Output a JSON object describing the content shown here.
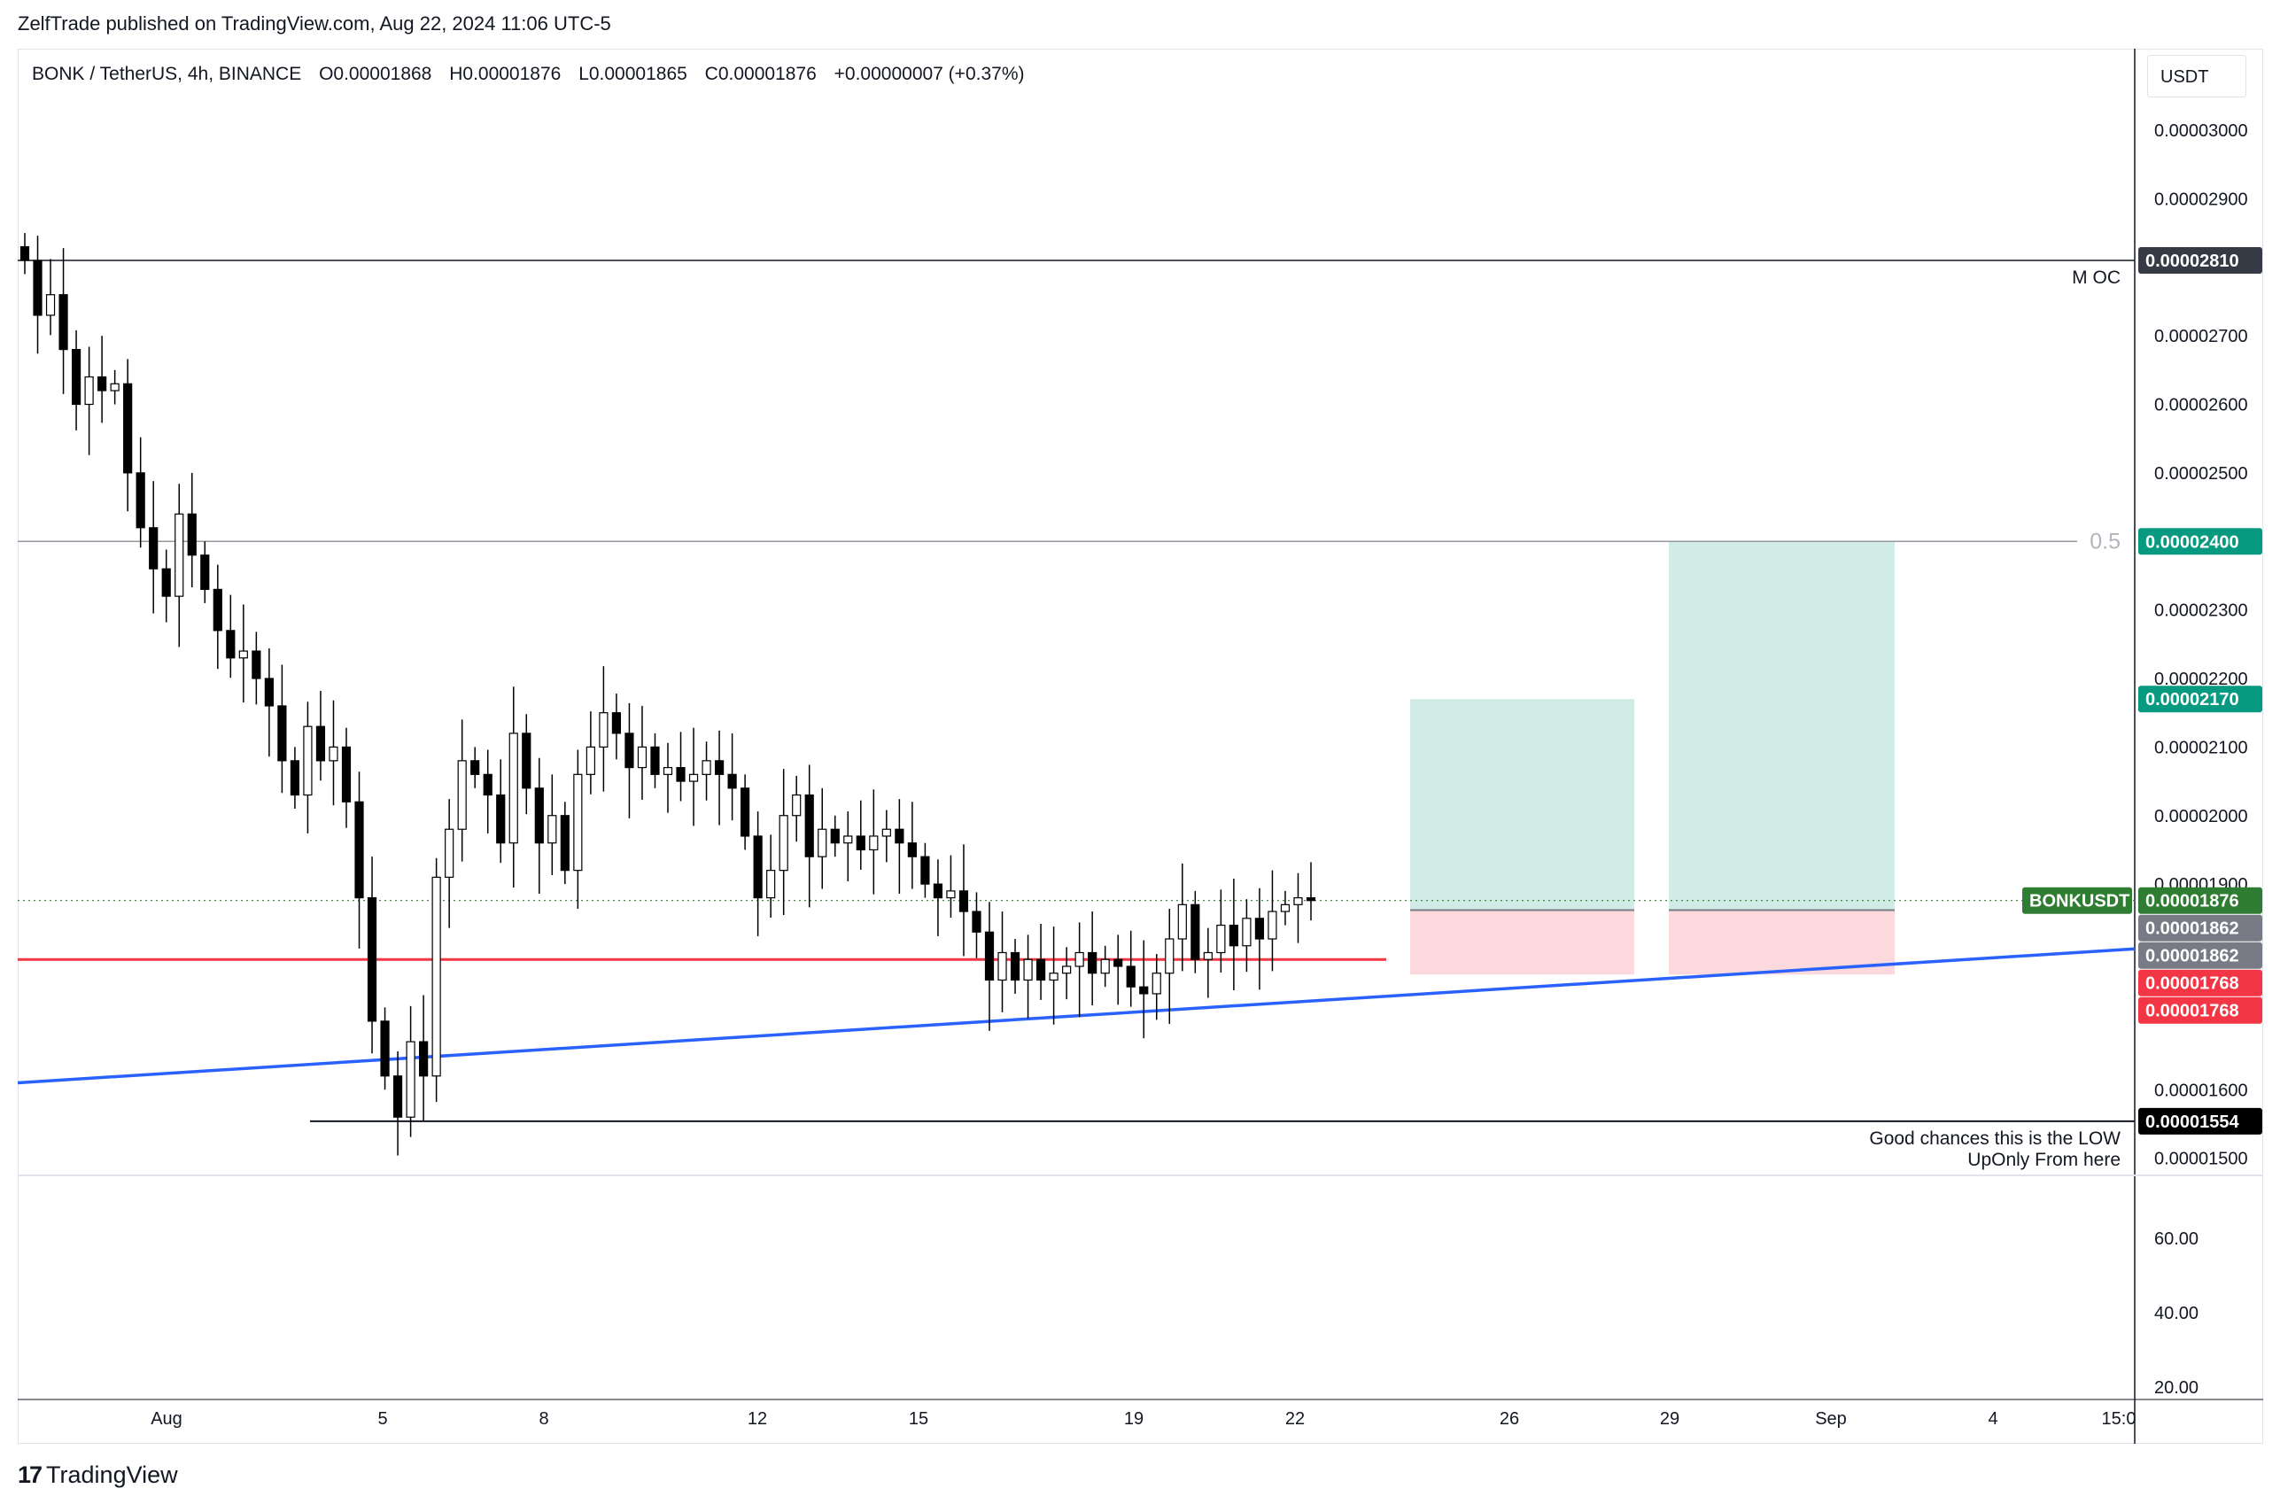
{
  "header": {
    "publisher": "ZelfTrade published on TradingView.com, Aug 22, 2024 11:06 UTC-5"
  },
  "legend": {
    "symbol": "BONK / TetherUS, 4h, BINANCE",
    "open": "O0.00001868",
    "high": "H0.00001876",
    "low": "L0.00001865",
    "close": "C0.00001876",
    "change": "+0.00000007 (+0.37%)"
  },
  "currency_button": "USDT",
  "brand": {
    "logo": "17",
    "name": "TradingView"
  },
  "colors": {
    "up": "#ffffff",
    "down": "#000000",
    "candle_border": "#000000",
    "support_line": "#f23645",
    "trend_line": "#2962ff",
    "tp_zone": "#d1ece6",
    "sl_zone": "#fcd9dc",
    "tp_label": "#089981",
    "sl_label": "#f23645",
    "entry_label": "#787b86",
    "symbol_label": "#2e7d32"
  },
  "chart_data": {
    "type": "candlestick",
    "symbol": "BONKUSDT",
    "interval": "4h",
    "ylim": [
      1.48e-05,
      3.13e-05
    ],
    "y_ticks": [
      "0.00003000",
      "0.00002900",
      "0.00002700",
      "0.00002600",
      "0.00002500",
      "0.00002300",
      "0.00002200",
      "0.00002100",
      "0.00002000",
      "0.00001900",
      "0.00001600",
      "0.00001500"
    ],
    "x_ticks": [
      "Aug",
      "5",
      "8",
      "12",
      "15",
      "19",
      "22",
      "26",
      "29",
      "Sep",
      "4",
      "15:0"
    ],
    "close_series": [
      2.81,
      2.73,
      2.76,
      2.68,
      2.6,
      2.64,
      2.62,
      2.63,
      2.5,
      2.42,
      2.36,
      2.32,
      2.44,
      2.38,
      2.33,
      2.27,
      2.23,
      2.24,
      2.2,
      2.16,
      2.08,
      2.03,
      2.13,
      2.08,
      2.1,
      2.02,
      1.88,
      1.7,
      1.62,
      1.56,
      1.67,
      1.62,
      1.91,
      1.98,
      2.08,
      2.06,
      2.03,
      1.96,
      2.12,
      2.04,
      1.96,
      2.0,
      1.92,
      2.06,
      2.1,
      2.15,
      2.12,
      2.07,
      2.1,
      2.06,
      2.07,
      2.05,
      2.06,
      2.08,
      2.06,
      2.04,
      1.97,
      1.88,
      1.92,
      2.0,
      2.03,
      1.94,
      1.98,
      1.96,
      1.97,
      1.95,
      1.97,
      1.98,
      1.96,
      1.94,
      1.9,
      1.88,
      1.89,
      1.86,
      1.83,
      1.76,
      1.8,
      1.76,
      1.79,
      1.76,
      1.77,
      1.78,
      1.8,
      1.77,
      1.79,
      1.78,
      1.75,
      1.74,
      1.77,
      1.82,
      1.87,
      1.79,
      1.8,
      1.84,
      1.81,
      1.85,
      1.82,
      1.86,
      1.87,
      1.88,
      1.876
    ],
    "volume_axis_ticks": [
      "60.00",
      "40.00",
      "20.00"
    ],
    "levels": [
      {
        "label": "M OC",
        "price": "0.00002810"
      },
      {
        "label": "0.5",
        "price": "0.00002400"
      },
      {
        "label": "",
        "price": "0.00001554"
      },
      {
        "label": "",
        "price": "0.00001790"
      }
    ],
    "trendline": {
      "from": 1.61e-05,
      "to": 1.79e-05
    },
    "positions": [
      {
        "entry": "0.00001862",
        "target": "0.00002170",
        "stop": "0.00001768"
      },
      {
        "entry": "0.00001862",
        "target": "0.00002400",
        "stop": "0.00001768"
      }
    ],
    "price_labels": {
      "moc": "0.00002810",
      "half": "0.00002400",
      "tp2": "0.00002170",
      "symbol": "BONKUSDT",
      "last": "0.00001876",
      "entry1": "0.00001862",
      "entry2": "0.00001862",
      "stop1": "0.00001768",
      "stop2": "0.00001768",
      "low": "0.00001554"
    },
    "annotations": {
      "moc": "M OC",
      "half": "0.5",
      "low_line1": "Good chances this is the LOW",
      "low_line2": "UpOnly From here"
    }
  }
}
